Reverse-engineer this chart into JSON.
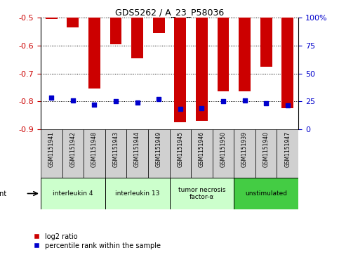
{
  "title": "GDS5262 / A_23_P58036",
  "samples": [
    "GSM1151941",
    "GSM1151942",
    "GSM1151948",
    "GSM1151943",
    "GSM1151944",
    "GSM1151949",
    "GSM1151945",
    "GSM1151946",
    "GSM1151950",
    "GSM1151939",
    "GSM1151940",
    "GSM1151947"
  ],
  "log2_ratio": [
    -0.505,
    -0.535,
    -0.755,
    -0.595,
    -0.645,
    -0.555,
    -0.875,
    -0.87,
    -0.765,
    -0.765,
    -0.675,
    -0.825
  ],
  "percentile_rank": [
    28,
    26,
    22,
    25,
    24,
    27,
    18,
    19,
    25,
    26,
    23,
    21
  ],
  "ylim_left": [
    -0.9,
    -0.5
  ],
  "yticks_left": [
    -0.9,
    -0.8,
    -0.7,
    -0.6,
    -0.5
  ],
  "ylim_right": [
    0,
    100
  ],
  "yticks_right": [
    0,
    25,
    50,
    75,
    100
  ],
  "agents": [
    {
      "label": "interleukin 4",
      "start": 0,
      "end": 3,
      "color": "#ccffcc"
    },
    {
      "label": "interleukin 13",
      "start": 3,
      "end": 6,
      "color": "#ccffcc"
    },
    {
      "label": "tumor necrosis\nfactor-α",
      "start": 6,
      "end": 9,
      "color": "#ccffcc"
    },
    {
      "label": "unstimulated",
      "start": 9,
      "end": 12,
      "color": "#44cc44"
    }
  ],
  "bar_color": "#cc0000",
  "dot_color": "#0000cc",
  "bar_width": 0.55,
  "grid_color": "black",
  "bg_color": "#ffffff",
  "left_tick_color": "#cc0000",
  "right_tick_color": "#0000cc",
  "sample_bg_color": "#d0d0d0"
}
